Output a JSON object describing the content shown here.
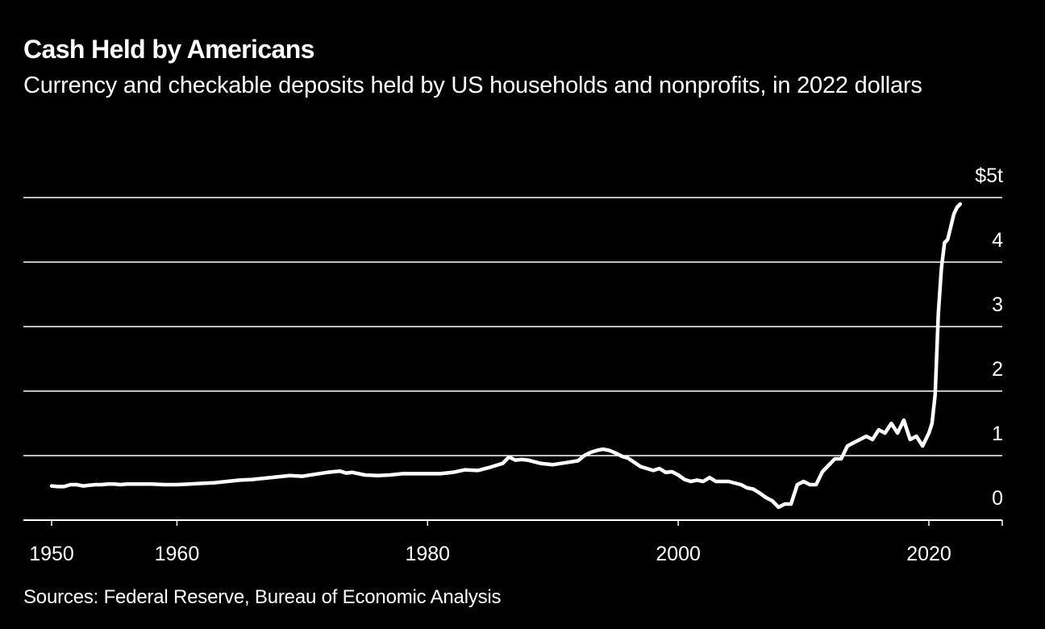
{
  "title": "Cash Held by Americans",
  "subtitle": "Currency and checkable deposits held by US households and nonprofits, in 2022 dollars",
  "source": "Sources: Federal Reserve, Bureau of Economic Analysis",
  "chart_data": {
    "type": "line",
    "title": "Cash Held by Americans",
    "subtitle": "Currency and checkable deposits held by US households and nonprofits, in 2022 dollars",
    "xlabel": "",
    "ylabel": "",
    "xlim": [
      1949,
      2026
    ],
    "ylim": [
      0,
      5
    ],
    "x_ticks": [
      1950,
      1960,
      1980,
      2000,
      2020
    ],
    "x_tick_labels": [
      "1950",
      "1960",
      "1980",
      "2000",
      "2020"
    ],
    "y_ticks": [
      0,
      1,
      2,
      3,
      4,
      5
    ],
    "y_tick_labels": [
      "0",
      "1",
      "2",
      "3",
      "4",
      "$5t"
    ],
    "grid": true,
    "y_axis_side": "right",
    "line_color": "#ffffff",
    "background_color": "#000000",
    "series": [
      {
        "x": [
          1950.0,
          1950.5,
          1951.0,
          1951.5,
          1952.0,
          1952.5,
          1953.0,
          1953.5,
          1954.0,
          1954.5,
          1955.0,
          1955.5,
          1956.0,
          1957.0,
          1958.0,
          1959.0,
          1960.0,
          1961.0,
          1962.0,
          1963.0,
          1964.0,
          1965.0,
          1966.0,
          1967.0,
          1968.0,
          1969.0,
          1970.0,
          1971.0,
          1972.0,
          1973.0,
          1973.5,
          1974.0,
          1975.0,
          1976.0,
          1977.0,
          1978.0,
          1979.0,
          1980.0,
          1981.0,
          1982.0,
          1983.0,
          1984.0,
          1985.0,
          1986.0,
          1986.5,
          1987.0,
          1987.5,
          1988.0,
          1989.0,
          1990.0,
          1991.0,
          1992.0,
          1992.5,
          1993.0,
          1993.5,
          1994.0,
          1994.5,
          1995.0,
          1995.5,
          1996.0,
          1997.0,
          1998.0,
          1998.5,
          1999.0,
          1999.5,
          2000.0,
          2000.5,
          2001.0,
          2001.5,
          2002.0,
          2002.5,
          2003.0,
          2004.0,
          2005.0,
          2005.5,
          2006.0,
          2006.5,
          2007.0,
          2007.5,
          2008.0,
          2008.5,
          2009.0,
          2009.5,
          2010.0,
          2010.5,
          2011.0,
          2011.5,
          2012.0,
          2012.5,
          2013.0,
          2013.5,
          2014.0,
          2014.5,
          2015.0,
          2015.5,
          2016.0,
          2016.5,
          2017.0,
          2017.5,
          2018.0,
          2018.5,
          2019.0,
          2019.5,
          2020.0,
          2020.25,
          2020.5,
          2020.75,
          2021.0,
          2021.25,
          2021.5,
          2021.75,
          2022.0,
          2022.25,
          2022.5
        ],
        "y": [
          0.53,
          0.52,
          0.52,
          0.55,
          0.55,
          0.53,
          0.54,
          0.55,
          0.55,
          0.56,
          0.56,
          0.55,
          0.56,
          0.56,
          0.56,
          0.55,
          0.55,
          0.56,
          0.57,
          0.58,
          0.6,
          0.62,
          0.63,
          0.65,
          0.67,
          0.69,
          0.68,
          0.71,
          0.74,
          0.76,
          0.73,
          0.74,
          0.7,
          0.69,
          0.7,
          0.72,
          0.72,
          0.72,
          0.72,
          0.74,
          0.78,
          0.77,
          0.82,
          0.88,
          0.98,
          0.93,
          0.94,
          0.93,
          0.88,
          0.86,
          0.89,
          0.92,
          1.0,
          1.05,
          1.08,
          1.1,
          1.08,
          1.04,
          0.99,
          0.96,
          0.83,
          0.77,
          0.8,
          0.74,
          0.75,
          0.7,
          0.63,
          0.6,
          0.62,
          0.6,
          0.66,
          0.6,
          0.6,
          0.55,
          0.5,
          0.48,
          0.42,
          0.35,
          0.3,
          0.2,
          0.25,
          0.25,
          0.55,
          0.6,
          0.55,
          0.55,
          0.75,
          0.85,
          0.95,
          0.95,
          1.15,
          1.2,
          1.25,
          1.3,
          1.25,
          1.4,
          1.35,
          1.5,
          1.35,
          1.55,
          1.25,
          1.3,
          1.15,
          1.35,
          1.5,
          1.95,
          3.2,
          3.9,
          4.3,
          4.35,
          4.55,
          4.75,
          4.85,
          4.9
        ]
      }
    ]
  }
}
